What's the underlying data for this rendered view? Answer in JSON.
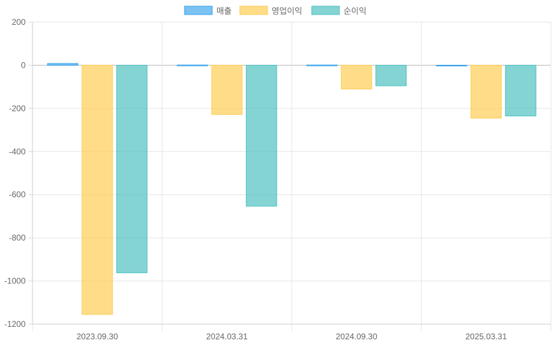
{
  "chart_data": {
    "type": "bar",
    "title": "",
    "xlabel": "",
    "ylabel": "",
    "categories": [
      "2023.09.30",
      "2024.03.31",
      "2024.09.30",
      "2025.03.31"
    ],
    "series": [
      {
        "name": "매출",
        "values": [
          8,
          1,
          1,
          0
        ],
        "color": "#36A2EB",
        "fill": "rgba(54,162,235,0.65)"
      },
      {
        "name": "영업이익",
        "values": [
          -1155,
          -228,
          -110,
          -245
        ],
        "color": "#FFCD56",
        "fill": "rgba(255,205,86,0.7)"
      },
      {
        "name": "순이익",
        "values": [
          -962,
          -653,
          -95,
          -235
        ],
        "color": "#4BC0C0",
        "fill": "rgba(75,192,192,0.68)"
      }
    ],
    "ylim": [
      -1200,
      200
    ],
    "yticks": [
      200,
      0,
      -200,
      -400,
      -600,
      -800,
      -1000,
      -1200
    ],
    "grid": true,
    "legend_position": "top-center"
  }
}
